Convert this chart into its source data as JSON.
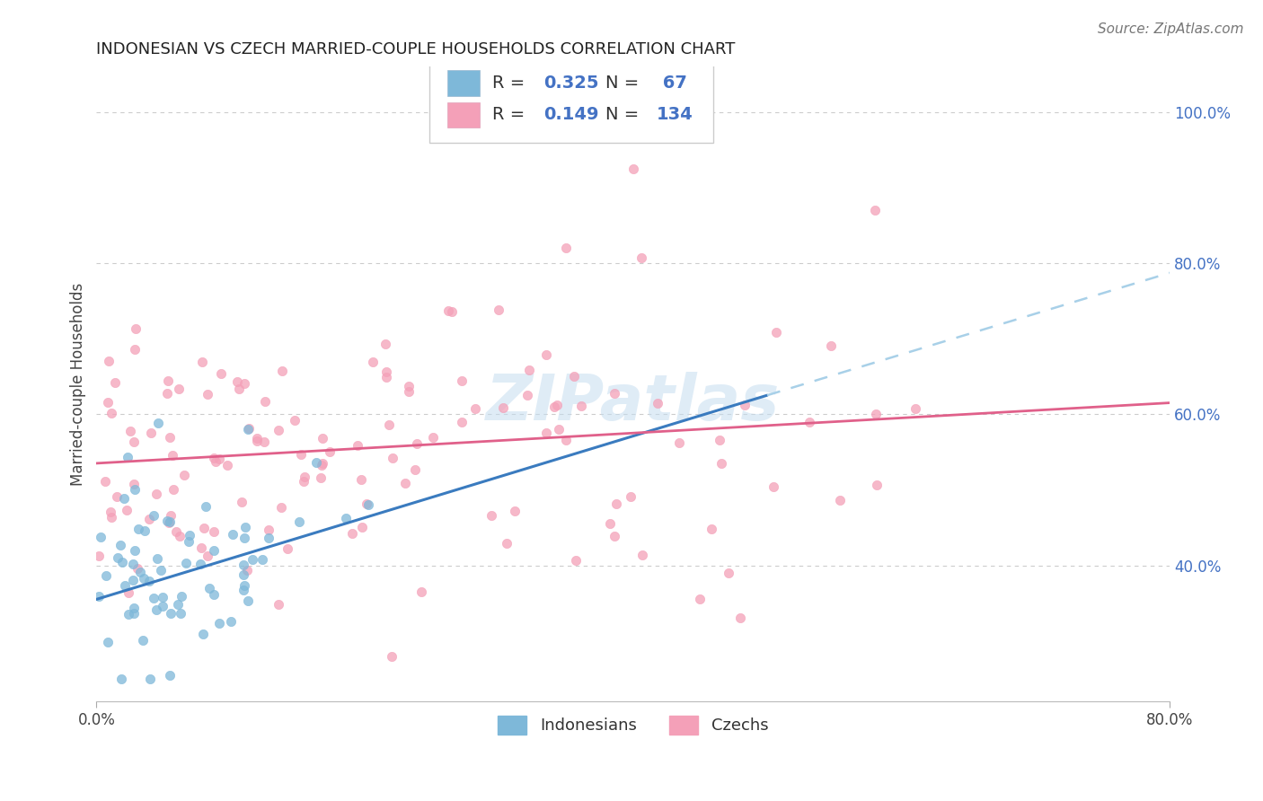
{
  "title": "INDONESIAN VS CZECH MARRIED-COUPLE HOUSEHOLDS CORRELATION CHART",
  "source": "Source: ZipAtlas.com",
  "ylabel_label": "Married-couple Households",
  "blue_color": "#7eb8d9",
  "pink_color": "#f4a0b8",
  "blue_line_color": "#3a7bbf",
  "pink_line_color": "#e0608a",
  "blue_dash_color": "#a8d0e8",
  "watermark_text": "ZIPatlas",
  "watermark_color": "#c5ddf0",
  "background_color": "#ffffff",
  "grid_color": "#cccccc",
  "ytick_color": "#4472c4",
  "title_fontsize": 13,
  "source_fontsize": 11,
  "axis_fontsize": 12,
  "legend_fontsize": 14,
  "xlim": [
    0.0,
    0.8
  ],
  "ylim": [
    0.22,
    1.06
  ],
  "yticks": [
    0.4,
    0.6,
    0.8,
    1.0
  ],
  "xticks": [
    0.0,
    0.8
  ],
  "indo_R": 0.325,
  "indo_N": 67,
  "czech_R": 0.149,
  "czech_N": 134,
  "indo_line_x0": 0.0,
  "indo_line_y0": 0.355,
  "indo_line_x1": 0.5,
  "indo_line_y1": 0.625,
  "czech_line_x0": 0.0,
  "czech_line_y0": 0.535,
  "czech_line_x1": 0.8,
  "czech_line_y1": 0.615,
  "scatter_size": 55,
  "scatter_alpha": 0.75,
  "indo_seed": 10,
  "czech_seed": 20
}
